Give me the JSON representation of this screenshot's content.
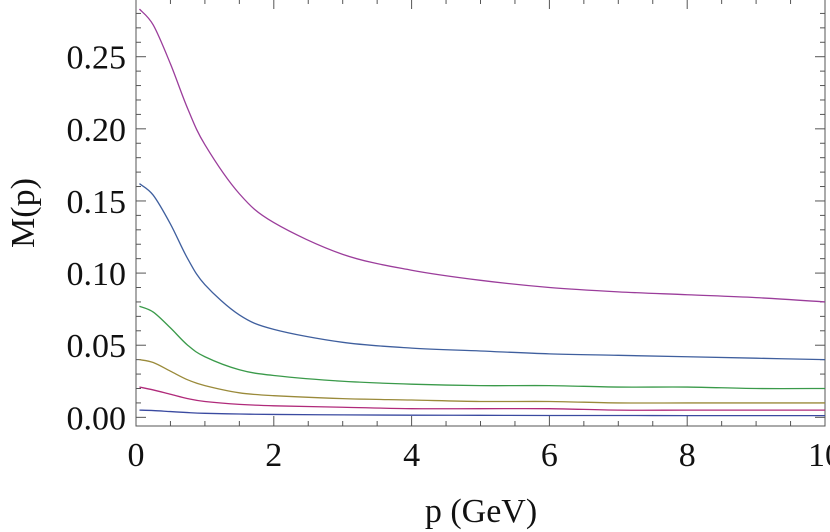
{
  "chart_data": {
    "type": "line",
    "title": "",
    "xlabel": "p (GeV)",
    "ylabel": "M(p)",
    "xlim": [
      0,
      10
    ],
    "ylim": [
      -0.006,
      0.29
    ],
    "xticks": [
      0,
      2,
      4,
      6,
      8,
      10
    ],
    "xtick_labels": [
      "0",
      "2",
      "4",
      "6",
      "8",
      "10"
    ],
    "yticks": [
      0.0,
      0.05,
      0.1,
      0.15,
      0.2,
      0.25
    ],
    "ytick_labels": [
      "0.00",
      "0.05",
      "0.10",
      "0.15",
      "0.20",
      "0.25"
    ],
    "grid": false,
    "x": [
      0.05,
      0.25,
      0.5,
      0.75,
      1,
      1.5,
      2,
      3,
      4,
      5,
      6,
      7,
      8,
      9,
      10
    ],
    "series": [
      {
        "color": "#9b3d9b",
        "values": [
          0.283,
          0.272,
          0.245,
          0.214,
          0.189,
          0.155,
          0.135,
          0.113,
          0.102,
          0.095,
          0.09,
          0.087,
          0.085,
          0.083,
          0.08
        ]
      },
      {
        "color": "#3f5f9e",
        "values": [
          0.162,
          0.154,
          0.134,
          0.11,
          0.092,
          0.071,
          0.061,
          0.052,
          0.048,
          0.046,
          0.044,
          0.043,
          0.042,
          0.041,
          0.04
        ]
      },
      {
        "color": "#3a9a4a",
        "values": [
          0.077,
          0.073,
          0.062,
          0.05,
          0.042,
          0.033,
          0.029,
          0.025,
          0.023,
          0.022,
          0.022,
          0.021,
          0.021,
          0.02,
          0.02
        ]
      },
      {
        "color": "#9a8a3a",
        "values": [
          0.04,
          0.038,
          0.032,
          0.026,
          0.022,
          0.017,
          0.015,
          0.013,
          0.012,
          0.011,
          0.011,
          0.01,
          0.01,
          0.01,
          0.01
        ]
      },
      {
        "color": "#b02a7a",
        "values": [
          0.021,
          0.019,
          0.016,
          0.013,
          0.011,
          0.009,
          0.008,
          0.007,
          0.006,
          0.006,
          0.006,
          0.005,
          0.005,
          0.005,
          0.005
        ]
      },
      {
        "color": "#3a4aa0",
        "values": [
          0.005,
          0.0047,
          0.004,
          0.0033,
          0.0028,
          0.0023,
          0.002,
          0.0017,
          0.0015,
          0.0014,
          0.0013,
          0.0013,
          0.0012,
          0.0012,
          0.0012
        ]
      }
    ]
  }
}
